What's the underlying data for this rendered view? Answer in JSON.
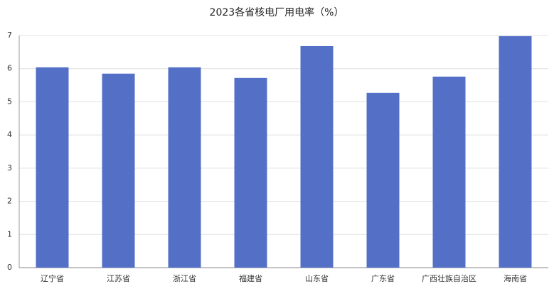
{
  "chart_data": {
    "type": "bar",
    "title": "2023各省核电厂用电率（%）",
    "categories": [
      "辽宁省",
      "江苏省",
      "浙江省",
      "福建省",
      "山东省",
      "广东省",
      "广西壮族自治区",
      "海南省"
    ],
    "values": [
      6.04,
      5.85,
      6.04,
      5.72,
      6.68,
      5.27,
      5.76,
      6.98
    ],
    "color": "#5470c6",
    "ylim": [
      0,
      7
    ],
    "yticks": [
      0,
      1,
      2,
      3,
      4,
      5,
      6,
      7
    ],
    "grid": true
  }
}
